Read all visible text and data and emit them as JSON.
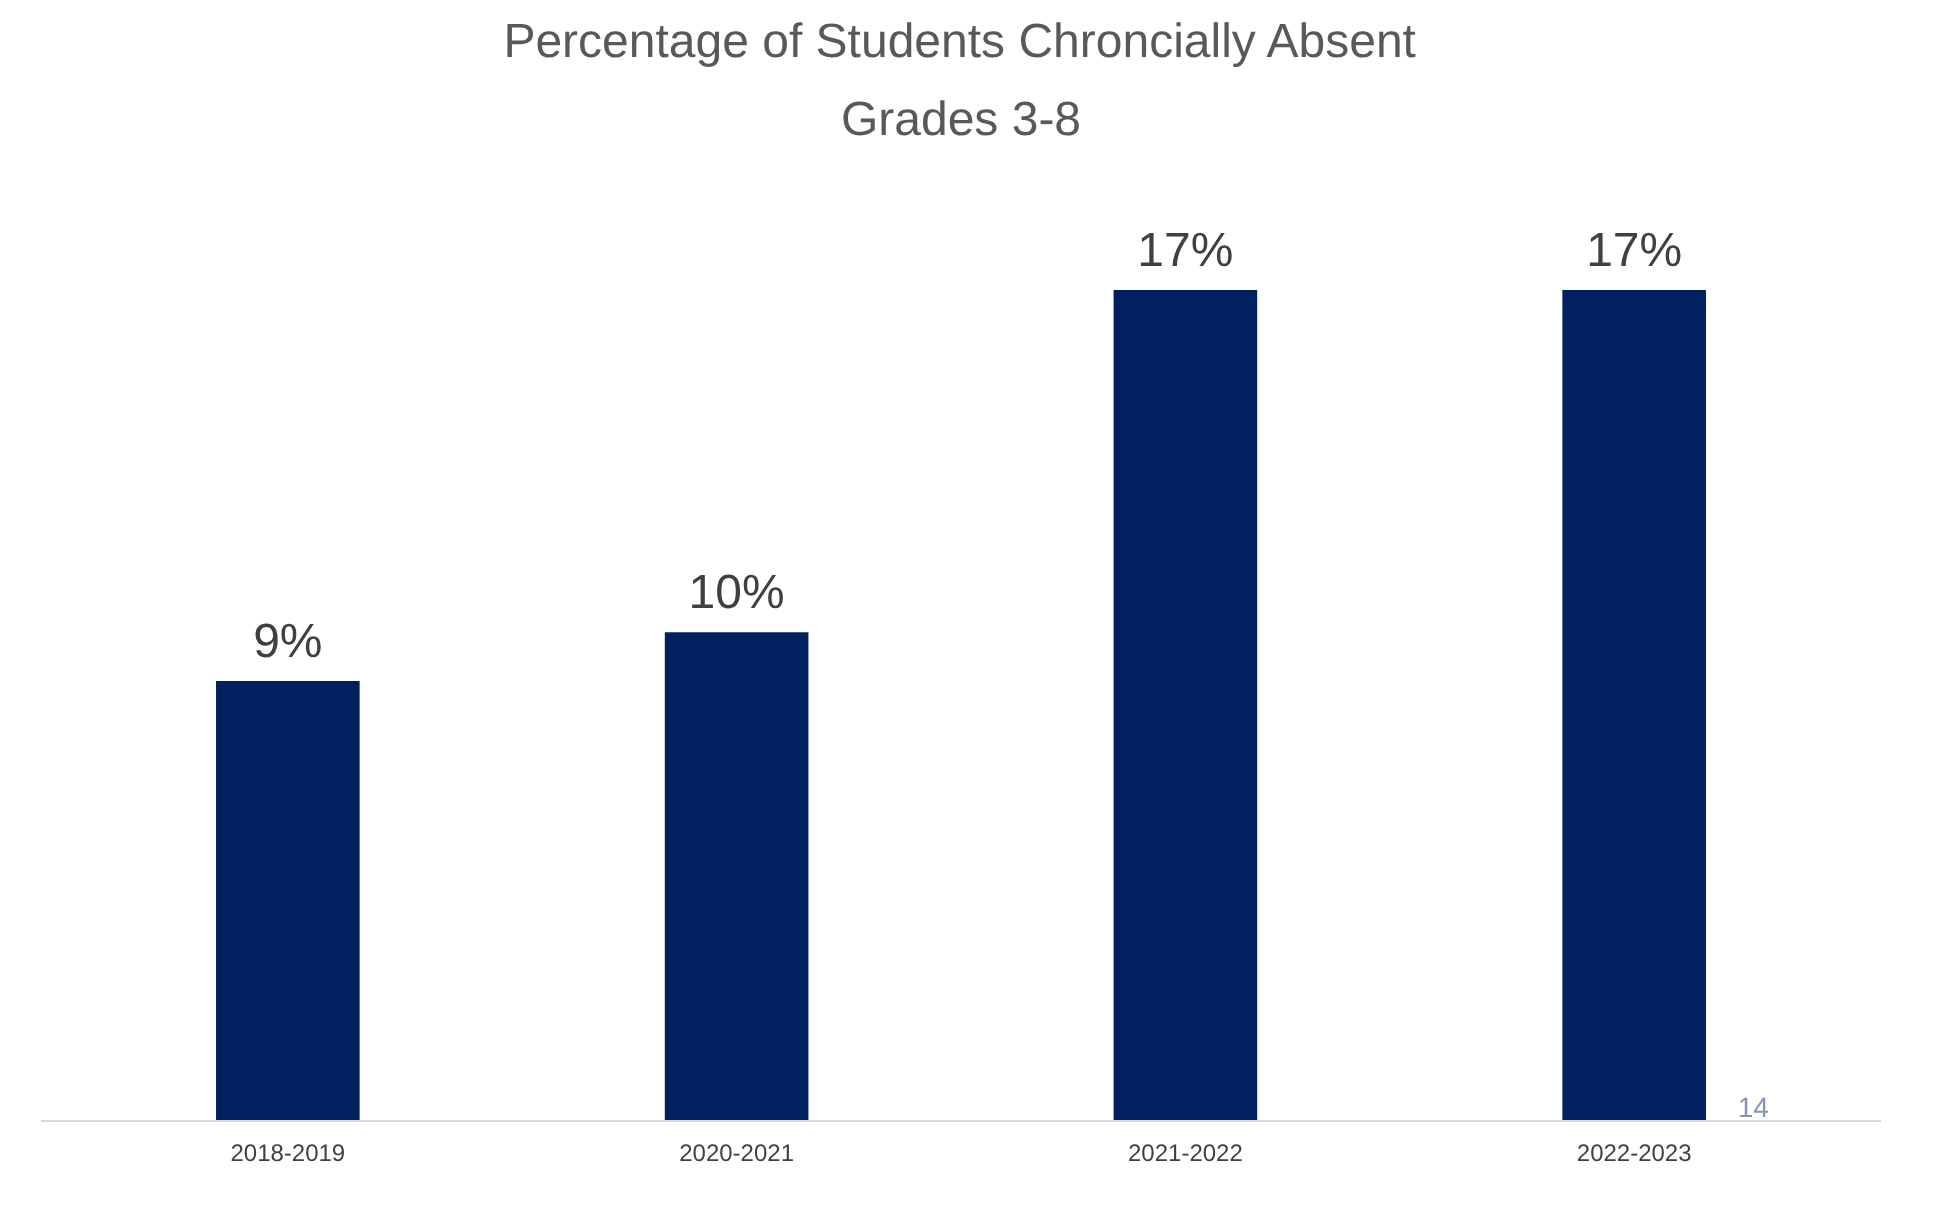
{
  "chart_data": {
    "type": "bar",
    "title": "Percentage of Students Chroncially Absent",
    "subtitle": "Grades 3-8",
    "categories": [
      "2018-2019",
      "2020-2021",
      "2021-2022",
      "2022-2023"
    ],
    "values": [
      9,
      10,
      17,
      17
    ],
    "value_labels": [
      "9%",
      "10%",
      "17%",
      "17%"
    ],
    "color": "#002060",
    "grid": false,
    "tick_labels": "x",
    "annotations": [
      "14"
    ]
  }
}
